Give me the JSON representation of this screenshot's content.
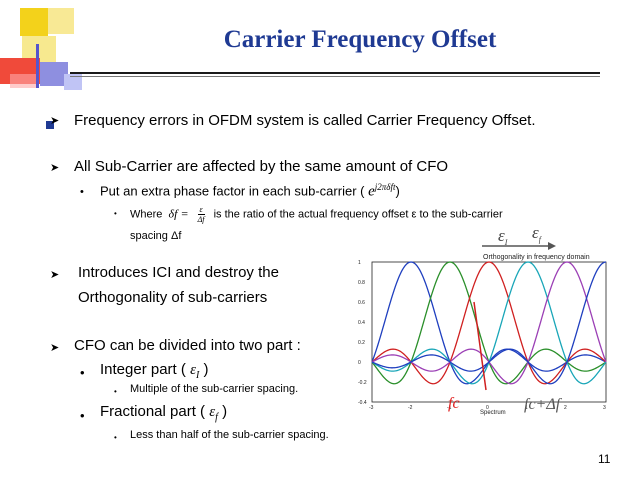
{
  "slide": {
    "title": "Carrier Frequency Offset",
    "page_number": "11"
  },
  "bullets": {
    "b1": "Frequency errors in OFDM system is called Carrier Frequency Offset.",
    "b2": "All Sub-Carrier are affected by the same amount of CFO",
    "b2_sub1_prefix": "Put an extra phase factor in each sub-carrier (",
    "b2_sub1_math": "e",
    "b2_sub1_exp": "j2πδft",
    "b2_sub1_suffix": ")",
    "b2_sub2_where": "Where",
    "b2_sub2_delta": "δf =",
    "b2_sub2_frac_num": "ε",
    "b2_sub2_frac_den": "Δf",
    "b2_sub2_text": "is the ratio of the actual frequency offset ε to the sub-carrier",
    "b2_sub2_text2": "spacing Δf",
    "b3_line1": "Introduces ICI and destroy the",
    "b3_line2": "Orthogonality of sub-carriers",
    "b4": "CFO can be divided into two part :",
    "b4_sub1": "Integer part (",
    "b4_sub1_math": "ε",
    "b4_sub1_sub": "I",
    "b4_sub1_end": ")",
    "b4_sub1_detail": "Multiple of the sub-carrier spacing.",
    "b4_sub2": "Fractional part (",
    "b4_sub2_math": "ε",
    "b4_sub2_sub": "f",
    "b4_sub2_end": ")",
    "b4_sub2_detail": "Less than half of the sub-carrier  spacing."
  },
  "figure": {
    "plot_title": "Orthogonality in frequency domain",
    "xlabel": "Spectrum",
    "annot_epsI": "ε",
    "annot_epsI_sub": "I",
    "annot_epsf": "ε",
    "annot_epsf_sub": "f",
    "annot_fc": "fc",
    "annot_fcdf": "fc+Δf",
    "colors": {
      "fc": "#e02020",
      "fcdf": "#555555",
      "arrow": "#555555"
    }
  },
  "chart_data": {
    "type": "line",
    "title": "Orthogonality in frequency domain",
    "xlabel": "Spectrum",
    "ylabel": "",
    "xlim": [
      -3,
      3
    ],
    "ylim": [
      -0.4,
      1.0
    ],
    "xticks": [
      "-3",
      "-2",
      "-1",
      "0",
      "1",
      "2",
      "3"
    ],
    "yticks": [
      "-0.4",
      "-0.2",
      "0",
      "0.2",
      "0.4",
      "0.6",
      "0.8",
      "1"
    ],
    "series": [
      {
        "color": "#1f3fbf",
        "center": -2
      },
      {
        "color": "#2a8f2a",
        "center": -1
      },
      {
        "color": "#d02020",
        "center": 0
      },
      {
        "color": "#19a6b8",
        "center": 1
      },
      {
        "color": "#9b3fb5",
        "center": 2
      },
      {
        "color": "#1f3fbf",
        "center": 3
      }
    ]
  }
}
